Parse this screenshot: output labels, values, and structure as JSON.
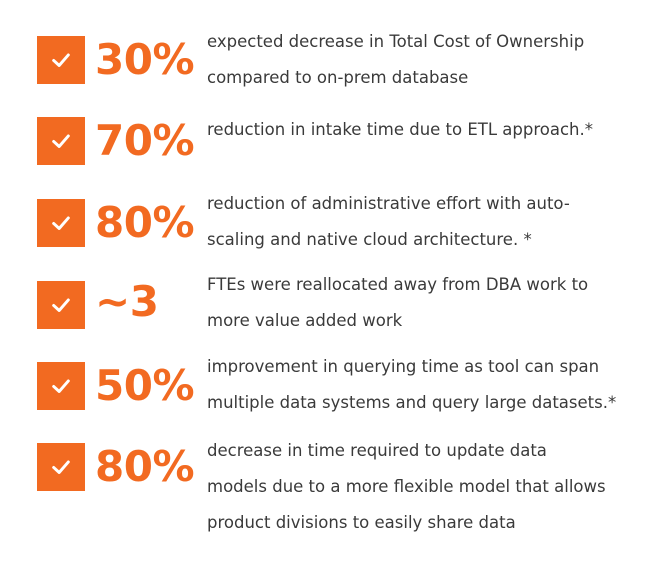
{
  "accent_color": "#f26a21",
  "text_color": "#3a3a3a",
  "check_icon": "checkmark-icon",
  "stats": [
    {
      "value": "30%",
      "description_lines": [
        "expected decrease in Total Cost of Ownership",
        "compared to on-prem database"
      ]
    },
    {
      "value": "70%",
      "description_lines": [
        "reduction in intake time due to ETL approach.*"
      ]
    },
    {
      "value": "80%",
      "description_lines": [
        "reduction of administrative effort with auto-",
        "scaling and native cloud architecture. *"
      ]
    },
    {
      "value": "~3",
      "description_lines": [
        "FTEs were reallocated away from DBA work to",
        "more value added work"
      ]
    },
    {
      "value": "50%",
      "description_lines": [
        "improvement in querying time as tool can span",
        "multiple data systems and query large datasets.*"
      ]
    },
    {
      "value": "80%",
      "description_lines": [
        "decrease in time required to update data",
        "models due to a more flexible model that allows",
        "product divisions to easily share data"
      ]
    }
  ]
}
